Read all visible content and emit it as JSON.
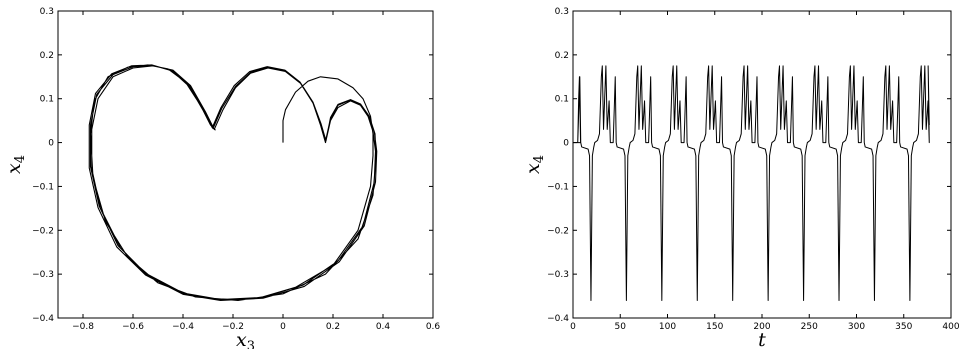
{
  "chart_data": [
    {
      "type": "line",
      "title": "",
      "xlabel": "x",
      "xlabel_sub": "3",
      "ylabel": "x",
      "ylabel_sub": "4",
      "xlim": [
        -0.9,
        0.6
      ],
      "ylim": [
        -0.4,
        0.3
      ],
      "xticks": [
        -0.8,
        -0.6,
        -0.4,
        -0.2,
        0,
        0.2,
        0.4,
        0.6
      ],
      "xtick_labels": [
        "−0.8",
        "−0.6",
        "−0.4",
        "−0.2",
        "0",
        "0.2",
        "0.4",
        "0.6"
      ],
      "yticks": [
        -0.4,
        -0.3,
        -0.2,
        -0.1,
        0,
        0.1,
        0.2,
        0.3
      ],
      "ytick_labels": [
        "−0.4",
        "−0.3",
        "−0.2",
        "−0.1",
        "0",
        "0.1",
        "0.2",
        "0.3"
      ],
      "grid": false,
      "series": [
        {
          "color": "#000000",
          "points": [
            [
              0.0,
              0.0
            ],
            [
              0.0,
              0.05
            ],
            [
              0.01,
              0.075
            ],
            [
              0.05,
              0.115
            ],
            [
              0.1,
              0.14
            ],
            [
              0.15,
              0.15
            ],
            [
              0.22,
              0.145
            ],
            [
              0.28,
              0.125
            ],
            [
              0.32,
              0.1
            ],
            [
              0.35,
              0.06
            ],
            [
              0.36,
              0.02
            ],
            [
              0.36,
              -0.03
            ],
            [
              0.35,
              -0.1
            ],
            [
              0.3,
              -0.2
            ],
            [
              0.2,
              -0.28
            ],
            [
              0.05,
              -0.33
            ],
            [
              -0.1,
              -0.355
            ],
            [
              -0.25,
              -0.36
            ],
            [
              -0.4,
              -0.345
            ],
            [
              -0.55,
              -0.3
            ],
            [
              -0.65,
              -0.24
            ],
            [
              -0.73,
              -0.15
            ],
            [
              -0.765,
              -0.06
            ],
            [
              -0.765,
              0.03
            ],
            [
              -0.74,
              0.1
            ],
            [
              -0.68,
              0.15
            ],
            [
              -0.6,
              0.17
            ],
            [
              -0.52,
              0.175
            ],
            [
              -0.44,
              0.165
            ],
            [
              -0.37,
              0.13
            ],
            [
              -0.31,
              0.07
            ],
            [
              -0.275,
              0.03
            ],
            [
              -0.24,
              0.075
            ],
            [
              -0.19,
              0.125
            ],
            [
              -0.13,
              0.158
            ],
            [
              -0.06,
              0.17
            ],
            [
              0.01,
              0.162
            ],
            [
              0.07,
              0.135
            ],
            [
              0.12,
              0.09
            ],
            [
              0.15,
              0.04
            ],
            [
              0.17,
              0.0
            ],
            [
              0.19,
              0.05
            ],
            [
              0.22,
              0.08
            ],
            [
              0.27,
              0.095
            ],
            [
              0.31,
              0.085
            ],
            [
              0.34,
              0.06
            ],
            [
              0.36,
              0.025
            ],
            [
              0.37,
              -0.02
            ],
            [
              0.365,
              -0.09
            ],
            [
              0.32,
              -0.19
            ],
            [
              0.22,
              -0.27
            ],
            [
              0.08,
              -0.325
            ],
            [
              -0.08,
              -0.353
            ],
            [
              -0.25,
              -0.358
            ],
            [
              -0.4,
              -0.343
            ],
            [
              -0.55,
              -0.298
            ],
            [
              -0.66,
              -0.235
            ],
            [
              -0.735,
              -0.145
            ],
            [
              -0.77,
              -0.055
            ],
            [
              -0.77,
              0.04
            ],
            [
              -0.745,
              0.11
            ],
            [
              -0.68,
              0.155
            ],
            [
              -0.6,
              0.173
            ],
            [
              -0.52,
              0.176
            ],
            [
              -0.44,
              0.163
            ],
            [
              -0.37,
              0.127
            ],
            [
              -0.31,
              0.068
            ],
            [
              -0.28,
              0.032
            ],
            [
              -0.245,
              0.078
            ],
            [
              -0.19,
              0.128
            ],
            [
              -0.13,
              0.16
            ],
            [
              -0.06,
              0.172
            ],
            [
              0.01,
              0.163
            ],
            [
              0.07,
              0.136
            ],
            [
              0.12,
              0.09
            ],
            [
              0.15,
              0.042
            ],
            [
              0.17,
              0.003
            ],
            [
              0.19,
              0.055
            ],
            [
              0.22,
              0.085
            ],
            [
              0.27,
              0.097
            ],
            [
              0.31,
              0.087
            ],
            [
              0.34,
              0.062
            ],
            [
              0.365,
              0.025
            ],
            [
              0.375,
              -0.02
            ],
            [
              0.37,
              -0.09
            ],
            [
              0.325,
              -0.19
            ],
            [
              0.225,
              -0.272
            ],
            [
              0.085,
              -0.328
            ],
            [
              -0.08,
              -0.355
            ],
            [
              -0.25,
              -0.36
            ],
            [
              -0.4,
              -0.346
            ],
            [
              -0.55,
              -0.302
            ],
            [
              -0.665,
              -0.238
            ],
            [
              -0.74,
              -0.148
            ],
            [
              -0.775,
              -0.058
            ],
            [
              -0.775,
              0.04
            ],
            [
              -0.75,
              0.112
            ],
            [
              -0.685,
              0.157
            ],
            [
              -0.605,
              0.175
            ],
            [
              -0.525,
              0.177
            ],
            [
              -0.445,
              0.164
            ],
            [
              -0.375,
              0.128
            ],
            [
              -0.315,
              0.069
            ],
            [
              -0.283,
              0.034
            ],
            [
              -0.248,
              0.08
            ],
            [
              -0.195,
              0.13
            ],
            [
              -0.133,
              0.162
            ],
            [
              -0.063,
              0.173
            ],
            [
              0.008,
              0.165
            ],
            [
              0.068,
              0.138
            ],
            [
              0.12,
              0.092
            ],
            [
              0.152,
              0.043
            ],
            [
              0.172,
              0.004
            ],
            [
              0.19,
              0.057
            ],
            [
              0.22,
              0.087
            ],
            [
              0.27,
              0.098
            ],
            [
              0.31,
              0.088
            ],
            [
              0.345,
              0.06
            ],
            [
              0.368,
              0.02
            ],
            [
              0.372,
              -0.03
            ],
            [
              0.36,
              -0.12
            ],
            [
              0.3,
              -0.22
            ],
            [
              0.17,
              -0.3
            ],
            [
              0.0,
              -0.345
            ],
            [
              -0.18,
              -0.36
            ],
            [
              -0.35,
              -0.352
            ],
            [
              -0.5,
              -0.32
            ],
            [
              -0.62,
              -0.262
            ],
            [
              -0.71,
              -0.18
            ],
            [
              -0.76,
              -0.08
            ],
            [
              -0.77,
              0.02
            ],
            [
              -0.755,
              0.095
            ],
            [
              -0.7,
              0.15
            ],
            [
              -0.62,
              0.172
            ],
            [
              -0.54,
              0.177
            ],
            [
              -0.46,
              0.168
            ],
            [
              -0.39,
              0.138
            ],
            [
              -0.33,
              0.085
            ],
            [
              -0.29,
              0.04
            ],
            [
              -0.27,
              0.028
            ]
          ]
        }
      ]
    },
    {
      "type": "line",
      "title": "",
      "xlabel": "t",
      "xlabel_sub": "",
      "ylabel": "x",
      "ylabel_sub": "4",
      "xlim": [
        0,
        400
      ],
      "ylim": [
        -0.4,
        0.3
      ],
      "xticks": [
        0,
        50,
        100,
        150,
        200,
        250,
        300,
        350,
        400
      ],
      "xtick_labels": [
        "0",
        "50",
        "100",
        "150",
        "200",
        "250",
        "300",
        "350",
        "400"
      ],
      "yticks": [
        -0.4,
        -0.3,
        -0.2,
        -0.1,
        0,
        0.1,
        0.2,
        0.3
      ],
      "ytick_labels": [
        "−0.4",
        "−0.3",
        "−0.2",
        "−0.1",
        "0",
        "0.1",
        "0.2",
        "0.3"
      ],
      "grid": false,
      "period": 37.5,
      "t_start": 5,
      "t_end": 377,
      "cycle": [
        [
          0.0,
          0.0
        ],
        [
          1.2,
          0.08
        ],
        [
          2.2,
          0.15
        ],
        [
          3.2,
          0.0
        ],
        [
          4.2,
          -0.01
        ],
        [
          11.0,
          -0.015
        ],
        [
          12.5,
          -0.03
        ],
        [
          14.0,
          -0.36
        ],
        [
          15.5,
          -0.03
        ],
        [
          17.0,
          -0.01
        ],
        [
          18.0,
          0.0
        ],
        [
          21.0,
          0.005
        ],
        [
          23.0,
          0.02
        ],
        [
          25.0,
          0.15
        ],
        [
          26.0,
          0.175
        ],
        [
          27.3,
          0.03
        ],
        [
          28.5,
          0.1
        ],
        [
          29.8,
          0.175
        ],
        [
          31.2,
          0.03
        ],
        [
          32.2,
          0.06
        ],
        [
          33.2,
          0.095
        ],
        [
          34.5,
          0.0
        ],
        [
          37.5,
          0.0
        ]
      ],
      "initial": [
        [
          5.0,
          0.0
        ],
        [
          6.0,
          0.1
        ],
        [
          6.8,
          0.15
        ],
        [
          8.0,
          0.0
        ]
      ],
      "final": [
        [
          375.8,
          0.175
        ],
        [
          377.0,
          0.04
        ]
      ]
    }
  ]
}
